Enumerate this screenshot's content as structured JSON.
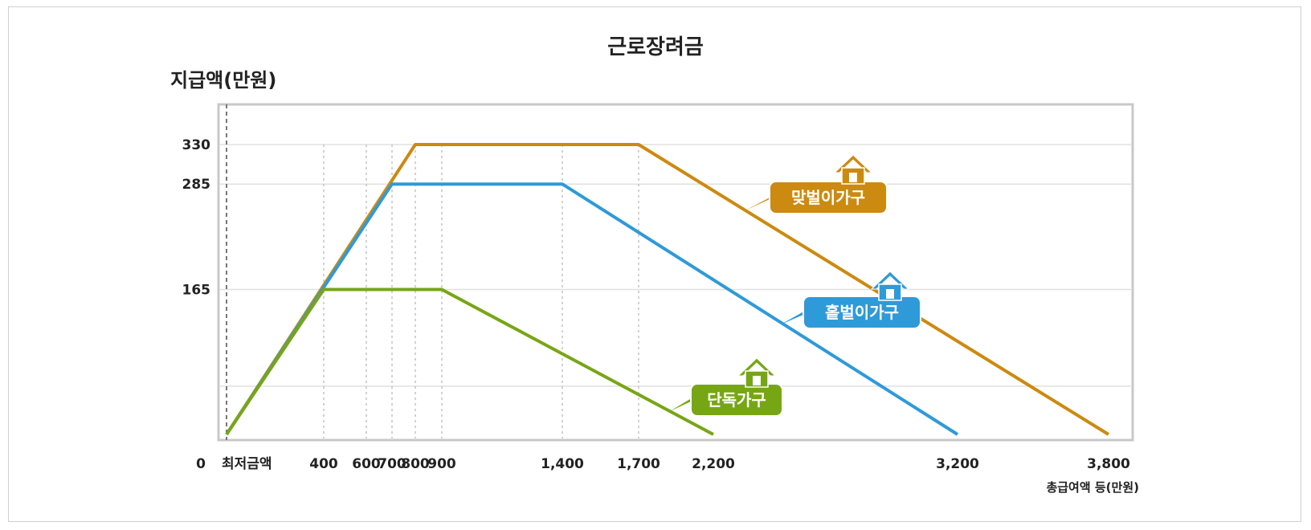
{
  "title": "근로장려금",
  "chart_data": {
    "type": "line",
    "title": "근로장려금",
    "ylabel": "지급액(만원)",
    "xlabel": "총급여액 등(만원)",
    "xlim": [
      0,
      3800
    ],
    "ylim": [
      0,
      330
    ],
    "x_tick_labels": [
      {
        "x": 0,
        "label": "0"
      },
      {
        "x": 120,
        "label": "최저금액"
      },
      {
        "x": 400,
        "label": "400"
      },
      {
        "x": 600,
        "label": "600"
      },
      {
        "x": 700,
        "label": "700"
      },
      {
        "x": 800,
        "label": "800"
      },
      {
        "x": 900,
        "label": "900"
      },
      {
        "x": 1400,
        "label": "1,400"
      },
      {
        "x": 1700,
        "label": "1,700"
      },
      {
        "x": 2200,
        "label": "2,200"
      },
      {
        "x": 3200,
        "label": "3,200"
      },
      {
        "x": 3800,
        "label": "3,800"
      }
    ],
    "y_tick_labels": [
      {
        "y": 330,
        "label": "330"
      },
      {
        "y": 285,
        "label": "285"
      },
      {
        "y": 165,
        "label": "165"
      }
    ],
    "grid_y": [
      55,
      165,
      285,
      330
    ],
    "dotted_x": [
      400,
      600,
      700,
      800,
      900,
      1400,
      1700
    ],
    "series": [
      {
        "name": "맞벌이가구",
        "color": "#cc8a10",
        "points": [
          [
            0,
            0
          ],
          [
            800,
            330
          ],
          [
            1700,
            330
          ],
          [
            3800,
            0
          ]
        ]
      },
      {
        "name": "홑벌이가구",
        "color": "#2f9ad8",
        "points": [
          [
            0,
            0
          ],
          [
            700,
            285
          ],
          [
            1400,
            285
          ],
          [
            3200,
            0
          ]
        ]
      },
      {
        "name": "단독가구",
        "color": "#77a615",
        "points": [
          [
            0,
            0
          ],
          [
            400,
            165
          ],
          [
            900,
            165
          ],
          [
            2200,
            0
          ]
        ]
      }
    ]
  }
}
